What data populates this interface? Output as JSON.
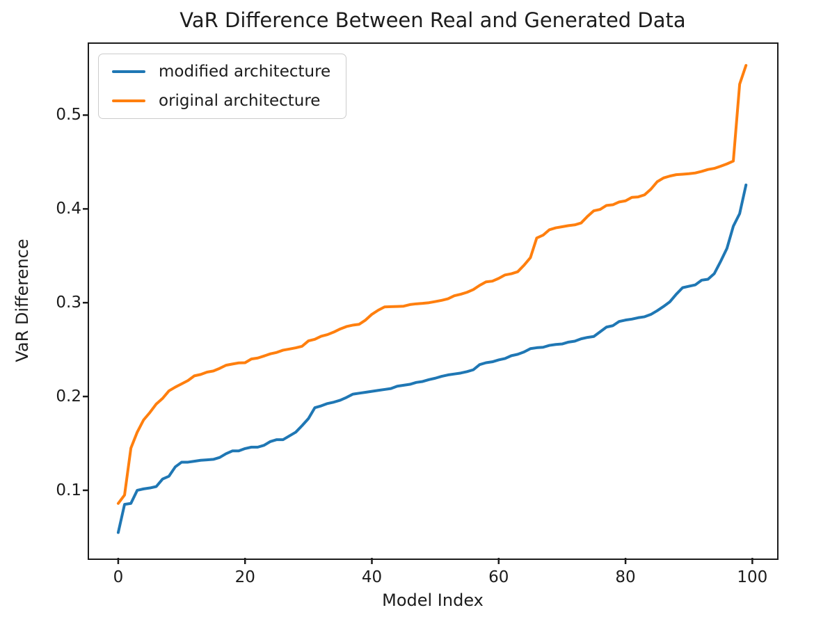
{
  "chart_data": {
    "type": "line",
    "title": "VaR Difference Between Real and Generated Data",
    "xlabel": "Model Index",
    "ylabel": "VaR Difference",
    "xlim": [
      -4.6,
      103.8
    ],
    "ylim": [
      0.028,
      0.576
    ],
    "x_ticks": [
      0,
      20,
      40,
      60,
      80,
      100
    ],
    "y_ticks": [
      0.1,
      0.2,
      0.3,
      0.4,
      0.5
    ],
    "grid": false,
    "legend_position": "upper left",
    "x_range": [
      0,
      99
    ],
    "series": [
      {
        "name": "modified architecture",
        "color": "#1f77b4",
        "values": [
          0.055,
          0.085,
          0.086,
          0.1,
          0.1015,
          0.1025,
          0.104,
          0.112,
          0.115,
          0.125,
          0.13,
          0.13,
          0.131,
          0.132,
          0.1325,
          0.133,
          0.135,
          0.139,
          0.142,
          0.142,
          0.1445,
          0.146,
          0.146,
          0.148,
          0.152,
          0.154,
          0.154,
          0.158,
          0.162,
          0.169,
          0.1765,
          0.188,
          0.19,
          0.1925,
          0.194,
          0.196,
          0.199,
          0.2025,
          0.2035,
          0.2045,
          0.2055,
          0.2065,
          0.2075,
          0.2085,
          0.211,
          0.212,
          0.213,
          0.215,
          0.216,
          0.218,
          0.2195,
          0.2215,
          0.223,
          0.224,
          0.225,
          0.2265,
          0.2285,
          0.234,
          0.236,
          0.237,
          0.239,
          0.2405,
          0.2435,
          0.245,
          0.2475,
          0.251,
          0.252,
          0.2525,
          0.2545,
          0.2555,
          0.256,
          0.258,
          0.259,
          0.2615,
          0.263,
          0.264,
          0.269,
          0.274,
          0.2755,
          0.28,
          0.2815,
          0.2825,
          0.284,
          0.285,
          0.2875,
          0.2915,
          0.296,
          0.301,
          0.309,
          0.316,
          0.3175,
          0.319,
          0.324,
          0.325,
          0.331,
          0.344,
          0.358,
          0.3815,
          0.395,
          0.4255
        ]
      },
      {
        "name": "original architecture",
        "color": "#ff7f0e",
        "values": [
          0.086,
          0.095,
          0.145,
          0.162,
          0.175,
          0.183,
          0.192,
          0.198,
          0.206,
          0.21,
          0.2135,
          0.217,
          0.222,
          0.2235,
          0.226,
          0.2272,
          0.23,
          0.2333,
          0.2346,
          0.2358,
          0.236,
          0.24,
          0.241,
          0.2432,
          0.2455,
          0.247,
          0.2494,
          0.2506,
          0.2519,
          0.2536,
          0.2593,
          0.261,
          0.2642,
          0.266,
          0.2687,
          0.272,
          0.2746,
          0.2761,
          0.277,
          0.2815,
          0.2876,
          0.292,
          0.2955,
          0.2958,
          0.296,
          0.2963,
          0.298,
          0.2988,
          0.2993,
          0.3,
          0.3012,
          0.3025,
          0.3042,
          0.3074,
          0.309,
          0.3111,
          0.314,
          0.3185,
          0.3222,
          0.323,
          0.3259,
          0.3296,
          0.3309,
          0.333,
          0.34,
          0.348,
          0.369,
          0.372,
          0.3778,
          0.3798,
          0.381,
          0.3822,
          0.383,
          0.385,
          0.392,
          0.398,
          0.3995,
          0.4037,
          0.4044,
          0.4074,
          0.4086,
          0.4123,
          0.4128,
          0.415,
          0.421,
          0.429,
          0.433,
          0.435,
          0.4365,
          0.437,
          0.4375,
          0.4383,
          0.44,
          0.442,
          0.4432,
          0.4455,
          0.448,
          0.451,
          0.533,
          0.553
        ]
      }
    ],
    "style": {
      "line_width": 4,
      "spine_color": "#1c1c1c",
      "tick_length": 9,
      "background": "#ffffff"
    }
  }
}
